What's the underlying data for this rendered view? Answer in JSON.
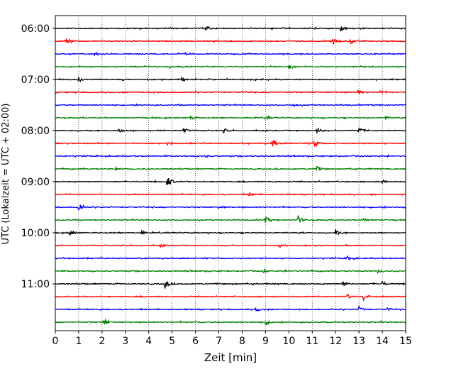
{
  "chart_data": {
    "type": "line",
    "title": "",
    "xlabel": "Zeit  [min]",
    "ylabel": "UTC (Lokalzeit = UTC + 02:00)",
    "xlim": [
      0,
      15
    ],
    "x_ticks": [
      "0",
      "1",
      "2",
      "3",
      "4",
      "5",
      "6",
      "7",
      "8",
      "9",
      "10",
      "11",
      "12",
      "13",
      "14",
      "15"
    ],
    "y_ticks": [
      "06:00",
      "07:00",
      "08:00",
      "09:00",
      "10:00",
      "11:00"
    ],
    "grid": "vertical dotted at each minute",
    "trace_interval_minutes": 15,
    "start_time": "06:00",
    "trace_colors": [
      "#000000",
      "#ff0000",
      "#0000ff",
      "#008000"
    ],
    "traces": [
      {
        "start": "06:00",
        "color": "#000000",
        "events": [
          {
            "t": 6.45,
            "amp": 0.35
          },
          {
            "t": 12.2,
            "amp": 0.55
          }
        ]
      },
      {
        "start": "06:15",
        "color": "#ff0000",
        "events": [
          {
            "t": 0.5,
            "amp": 0.3
          },
          {
            "t": 11.9,
            "amp": 0.35
          },
          {
            "t": 12.6,
            "amp": 0.45
          }
        ]
      },
      {
        "start": "06:30",
        "color": "#0000ff",
        "events": [
          {
            "t": 1.7,
            "amp": 0.25
          },
          {
            "t": 5.6,
            "amp": 0.2
          }
        ]
      },
      {
        "start": "06:45",
        "color": "#008000",
        "events": [
          {
            "t": 10.0,
            "amp": 0.3
          },
          {
            "t": 4.9,
            "amp": 0.15
          }
        ]
      },
      {
        "start": "07:00",
        "color": "#000000",
        "events": [
          {
            "t": 5.4,
            "amp": 0.35
          },
          {
            "t": 1.0,
            "amp": 0.2
          }
        ]
      },
      {
        "start": "07:15",
        "color": "#ff0000",
        "events": [
          {
            "t": 12.95,
            "amp": 0.25
          },
          {
            "t": 13.9,
            "amp": 0.2
          }
        ]
      },
      {
        "start": "07:30",
        "color": "#0000ff",
        "events": [
          {
            "t": 10.2,
            "amp": 0.15
          }
        ]
      },
      {
        "start": "07:45",
        "color": "#008000",
        "events": [
          {
            "t": 5.8,
            "amp": 0.3
          },
          {
            "t": 9.0,
            "amp": 0.3
          },
          {
            "t": 14.1,
            "amp": 0.2
          }
        ]
      },
      {
        "start": "08:00",
        "color": "#000000",
        "events": [
          {
            "t": 2.7,
            "amp": 0.3
          },
          {
            "t": 5.5,
            "amp": 0.3
          },
          {
            "t": 7.2,
            "amp": 0.25
          },
          {
            "t": 11.2,
            "amp": 0.3
          },
          {
            "t": 13.0,
            "amp": 0.45
          }
        ]
      },
      {
        "start": "08:15",
        "color": "#ff0000",
        "events": [
          {
            "t": 9.3,
            "amp": 0.45
          },
          {
            "t": 11.1,
            "amp": 0.5
          },
          {
            "t": 4.8,
            "amp": 0.15
          }
        ]
      },
      {
        "start": "08:30",
        "color": "#0000ff",
        "events": [
          {
            "t": 6.4,
            "amp": 0.15
          }
        ]
      },
      {
        "start": "08:45",
        "color": "#008000",
        "events": [
          {
            "t": 11.2,
            "amp": 0.25
          },
          {
            "t": 2.6,
            "amp": 0.15
          }
        ]
      },
      {
        "start": "09:00",
        "color": "#000000",
        "events": [
          {
            "t": 4.8,
            "amp": 0.8
          },
          {
            "t": 14.0,
            "amp": 0.2
          }
        ]
      },
      {
        "start": "09:15",
        "color": "#ff0000",
        "events": [
          {
            "t": 8.3,
            "amp": 0.2
          }
        ]
      },
      {
        "start": "09:30",
        "color": "#0000ff",
        "events": [
          {
            "t": 1.0,
            "amp": 0.7
          },
          {
            "t": 7.0,
            "amp": 0.15
          }
        ]
      },
      {
        "start": "09:45",
        "color": "#008000",
        "events": [
          {
            "t": 9.0,
            "amp": 0.35
          },
          {
            "t": 10.4,
            "amp": 0.5
          },
          {
            "t": 13.2,
            "amp": 0.2
          }
        ]
      },
      {
        "start": "10:00",
        "color": "#000000",
        "events": [
          {
            "t": 0.6,
            "amp": 0.4
          },
          {
            "t": 12.0,
            "amp": 0.45
          },
          {
            "t": 3.7,
            "amp": 0.2
          }
        ]
      },
      {
        "start": "10:15",
        "color": "#ff0000",
        "events": [
          {
            "t": 9.6,
            "amp": 0.2
          },
          {
            "t": 4.5,
            "amp": 0.15
          }
        ]
      },
      {
        "start": "10:30",
        "color": "#0000ff",
        "events": [
          {
            "t": 12.5,
            "amp": 0.2
          }
        ]
      },
      {
        "start": "10:45",
        "color": "#008000",
        "events": [
          {
            "t": 8.9,
            "amp": 0.2
          },
          {
            "t": 13.8,
            "amp": 0.2
          }
        ]
      },
      {
        "start": "11:00",
        "color": "#000000",
        "events": [
          {
            "t": 4.7,
            "amp": 0.6
          },
          {
            "t": 12.3,
            "amp": 0.3
          },
          {
            "t": 14.0,
            "amp": 0.3
          }
        ]
      },
      {
        "start": "11:15",
        "color": "#ff0000",
        "events": [
          {
            "t": 12.5,
            "amp": 0.3
          },
          {
            "t": 13.2,
            "amp": 0.45
          }
        ]
      },
      {
        "start": "11:30",
        "color": "#0000ff",
        "events": [
          {
            "t": 8.6,
            "amp": 0.25
          },
          {
            "t": 13.0,
            "amp": 0.3
          },
          {
            "t": 14.2,
            "amp": 0.2
          }
        ]
      },
      {
        "start": "11:45",
        "color": "#008000",
        "events": [
          {
            "t": 2.1,
            "amp": 0.5
          },
          {
            "t": 9.0,
            "amp": 0.3
          }
        ]
      }
    ]
  }
}
